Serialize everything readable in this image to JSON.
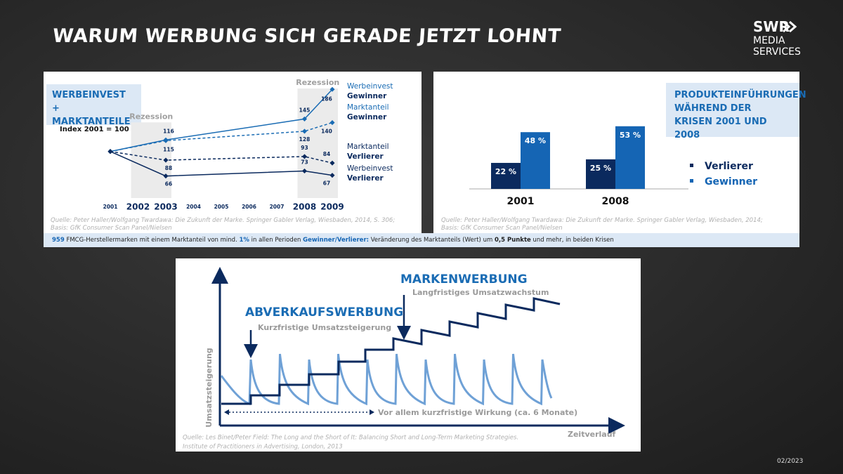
{
  "header": {
    "title": "WARUM WERBUNG SICH GERADE JETZT LOHNT",
    "logo": [
      "SWR",
      "MEDIA",
      "SERVICES"
    ],
    "date": "02/2023"
  },
  "chart_data": [
    {
      "type": "line",
      "title": "WERBEINVEST + MARKTANTEILE",
      "subtitle": "Index 2001 = 100",
      "x": [
        2001,
        2003,
        2008,
        2009
      ],
      "xlim": [
        2001,
        2009
      ],
      "xticks": [
        2001,
        2002,
        2003,
        2004,
        2005,
        2006,
        2007,
        2008,
        2009
      ],
      "ylim": [
        55,
        195
      ],
      "recessions": [
        {
          "label": "Rezession",
          "range": [
            2002,
            2003
          ]
        },
        {
          "label": "Rezession",
          "range": [
            2008,
            2009
          ]
        }
      ],
      "series": [
        {
          "name": "Werbeinvest Gewinner",
          "color": "#1a6cb4",
          "dashed": false,
          "values": [
            100,
            116,
            145,
            186
          ]
        },
        {
          "name": "Marktanteil Gewinner",
          "color": "#1a6cb4",
          "dashed": true,
          "values": [
            100,
            115,
            128,
            140
          ]
        },
        {
          "name": "Marktanteil Verlierer",
          "color": "#0b2a5e",
          "dashed": true,
          "values": [
            100,
            88,
            93,
            84
          ]
        },
        {
          "name": "Werbeinvest Verlierer",
          "color": "#0b2a5e",
          "dashed": false,
          "values": [
            100,
            66,
            73,
            67
          ]
        }
      ],
      "source": [
        "Quelle: Peter Haller/Wolfgang Twardawa: Die Zukunft der Marke. Springer Gabler Verlag, Wiesbaden, 2014, S. 306;",
        "Basis: GfK Consumer Scan Panel/Nielsen"
      ]
    },
    {
      "type": "bar",
      "title": "PRODUKTEINFÜHRUNGEN WÄHREND DER KRISEN 2001 UND 2008",
      "categories": [
        "2001",
        "2008"
      ],
      "ylim": [
        0,
        60
      ],
      "series": [
        {
          "name": "Verlierer",
          "color": "#0b2a5e",
          "values": [
            22,
            25
          ],
          "value_labels": [
            "22 %",
            "25 %"
          ]
        },
        {
          "name": "Gewinner",
          "color": "#1565b4",
          "values": [
            48,
            53
          ],
          "value_labels": [
            "48 %",
            "53 %"
          ]
        }
      ],
      "source": [
        "Quelle: Peter Haller/Wolfgang Twardawa: Die Zukunft der Marke. Springer Gabler Verlag, Wiesbaden, 2014;",
        "Basis: GfK Consumer Scan Panel/Nielsen"
      ]
    }
  ],
  "footnote": {
    "parts": [
      {
        "text": "959",
        "emphasis": "blue"
      },
      {
        "text": " FMCG-Herstellermarken mit einem Marktanteil von mind. "
      },
      {
        "text": "1%",
        "emphasis": "blue"
      },
      {
        "text": " in allen Perioden "
      },
      {
        "text": "Gewinner/Verlierer:",
        "emphasis": "blue"
      },
      {
        "text": " Veränderung des Marktanteils (Wert) um "
      },
      {
        "text": "0,5 Punkte",
        "emphasis": "bold"
      },
      {
        "text": " und mehr, in beiden Krisen"
      }
    ]
  },
  "diagram": {
    "long_term_title": "MARKENWERBUNG",
    "long_term_text": "Langfristiges Umsatzwachstum",
    "short_term_title": "ABVERKAUFSWERBUNG",
    "short_term_text": "Kurzfristige Umsatzsteigerung",
    "effect_note": "Vor allem kurzfristige Wirkung (ca. 6 Monate)",
    "y_axis_label": "Umsatzsteigerung",
    "x_axis_label": "Zeitverlauf",
    "source": [
      "Quelle: Les Binet/Peter Field: The Long and the Short of It: Balancing Short and Long-Term Marketing Strategies.",
      "Institute of Practitioners in Advertising, London, 2013"
    ]
  }
}
